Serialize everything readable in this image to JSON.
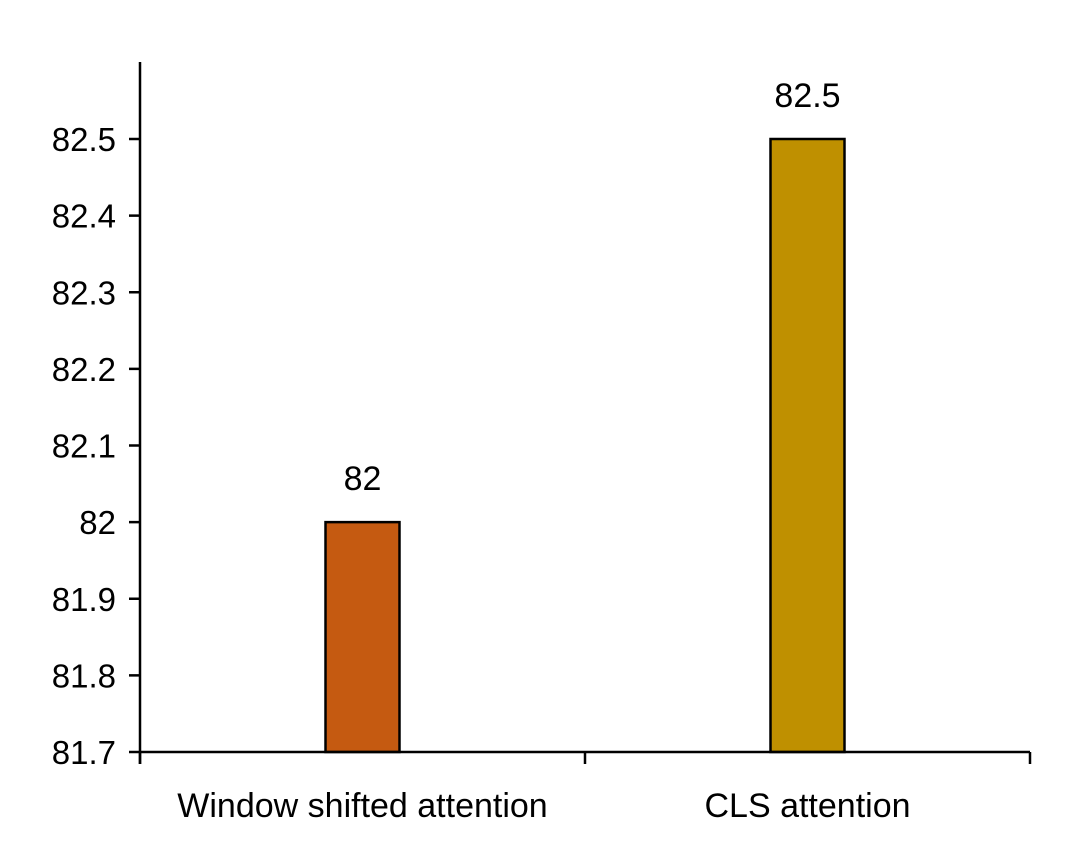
{
  "chart_data": {
    "type": "bar",
    "title": "",
    "xlabel": "",
    "ylabel": "",
    "categories": [
      "Window shifted attention",
      "CLS attention"
    ],
    "values": [
      82,
      82.5
    ],
    "value_labels": [
      "82",
      "82.5"
    ],
    "colors": [
      "#C55A11",
      "#BF9000"
    ],
    "ylim": [
      81.7,
      82.5
    ],
    "yticks": [
      "81.7",
      "81.8",
      "81.9",
      "82",
      "82.1",
      "82.2",
      "82.3",
      "82.4",
      "82.5"
    ],
    "grid": false,
    "legend": "none"
  }
}
